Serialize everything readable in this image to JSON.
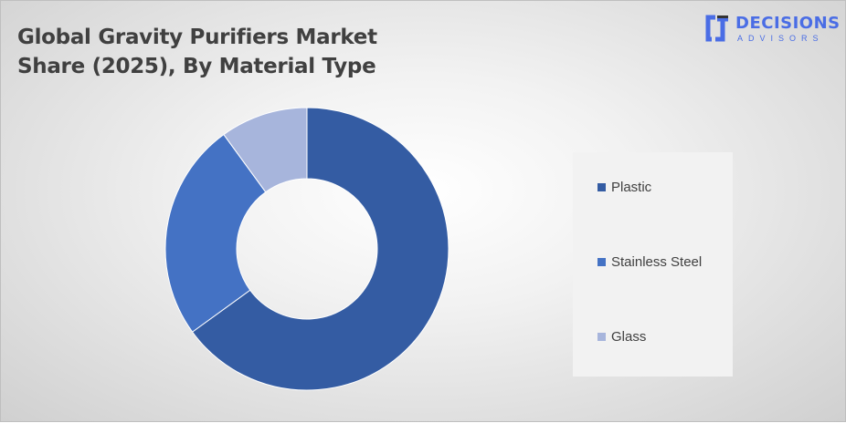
{
  "chart_data": {
    "type": "pie",
    "subtype": "donut",
    "title_lines": [
      "Global Gravity Purifiers Market",
      "Share (2025), By Material Type"
    ],
    "categories": [
      "Plastic",
      "Stainless Steel",
      "Glass"
    ],
    "values": [
      65,
      25,
      10
    ],
    "unit": "%",
    "colors": [
      "#345ca3",
      "#4472c4",
      "#a7b5dc"
    ],
    "legend_position": "right"
  },
  "logo": {
    "line1": "DECISIONS",
    "line2": "ADVISORS",
    "color": "#4a6de5"
  }
}
